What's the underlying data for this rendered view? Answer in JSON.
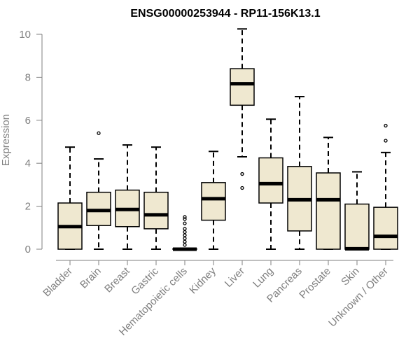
{
  "chart_data": {
    "type": "boxplot",
    "title": "ENSG00000253944 - RP11-156K13.1",
    "xlabel": "",
    "ylabel": "Expression",
    "ylim": [
      0,
      10
    ],
    "yticks": [
      0,
      2,
      4,
      6,
      8,
      10
    ],
    "categories": [
      "Bladder",
      "Brain",
      "Breast",
      "Gastric",
      "Hematopoietic cells",
      "Kidney",
      "Liver",
      "Lung",
      "Pancreas",
      "Prostate",
      "Skin",
      "Unknown / Other"
    ],
    "boxes": [
      {
        "min": 0,
        "q1": 0,
        "median": 1.05,
        "q3": 2.15,
        "max": 4.75,
        "outliers": []
      },
      {
        "min": 0,
        "q1": 1.1,
        "median": 1.8,
        "q3": 2.65,
        "max": 4.2,
        "outliers": [
          5.4
        ]
      },
      {
        "min": 0,
        "q1": 1.05,
        "median": 1.85,
        "q3": 2.75,
        "max": 4.85,
        "outliers": []
      },
      {
        "min": 0,
        "q1": 0.95,
        "median": 1.6,
        "q3": 2.65,
        "max": 4.75,
        "outliers": []
      },
      {
        "min": 0,
        "q1": 0,
        "median": 0,
        "q3": 0.02,
        "max": 0.05,
        "outliers": [
          0.2,
          0.35,
          0.5,
          0.65,
          0.8,
          0.95,
          1.2,
          1.4,
          1.5
        ]
      },
      {
        "min": 0,
        "q1": 1.35,
        "median": 2.35,
        "q3": 3.1,
        "max": 4.55,
        "outliers": []
      },
      {
        "min": 4.3,
        "q1": 6.7,
        "median": 7.7,
        "q3": 8.4,
        "max": 10.25,
        "outliers": [
          3.5,
          2.85
        ]
      },
      {
        "min": 0,
        "q1": 2.15,
        "median": 3.05,
        "q3": 4.25,
        "max": 6.05,
        "outliers": []
      },
      {
        "min": 0,
        "q1": 0.85,
        "median": 2.3,
        "q3": 3.85,
        "max": 7.1,
        "outliers": []
      },
      {
        "min": 0,
        "q1": 0,
        "median": 2.3,
        "q3": 3.55,
        "max": 5.2,
        "outliers": []
      },
      {
        "min": 0,
        "q1": 0,
        "median": 0.02,
        "q3": 2.1,
        "max": 3.6,
        "outliers": []
      },
      {
        "min": 0,
        "q1": 0,
        "median": 0.6,
        "q3": 1.95,
        "max": 4.5,
        "outliers": [
          5.05,
          5.75
        ]
      }
    ]
  }
}
